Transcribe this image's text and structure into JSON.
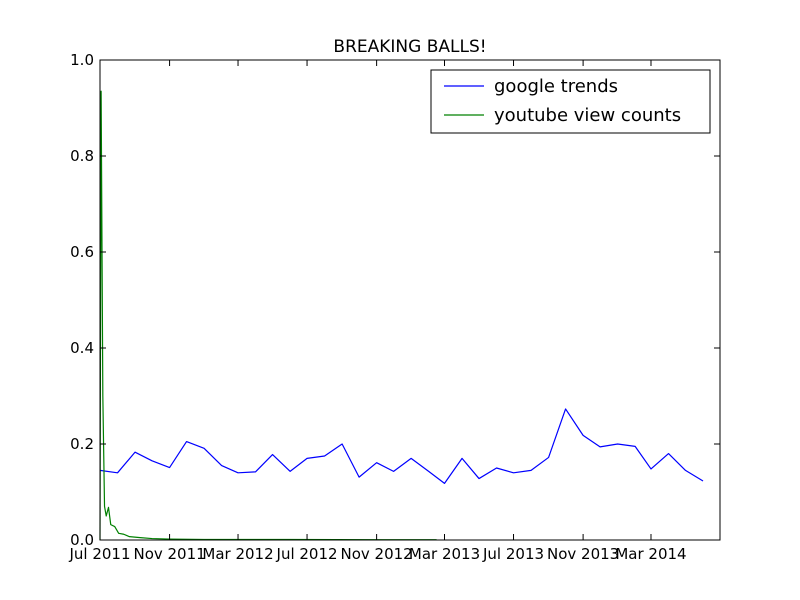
{
  "chart_data": {
    "type": "line",
    "title": "BREAKING BALLS!",
    "xlabel": "",
    "ylabel": "",
    "x_range": [
      "2011-07-01",
      "2014-07-01"
    ],
    "ylim": [
      0.0,
      1.0
    ],
    "x_ticks": [
      {
        "date": "2011-07-01",
        "label": "Jul 2011"
      },
      {
        "date": "2011-11-01",
        "label": "Nov 2011"
      },
      {
        "date": "2012-03-01",
        "label": "Mar 2012"
      },
      {
        "date": "2012-07-01",
        "label": "Jul 2012"
      },
      {
        "date": "2012-11-01",
        "label": "Nov 2012"
      },
      {
        "date": "2013-03-01",
        "label": "Mar 2013"
      },
      {
        "date": "2013-07-01",
        "label": "Jul 2013"
      },
      {
        "date": "2013-11-01",
        "label": "Nov 2013"
      },
      {
        "date": "2014-03-01",
        "label": "Mar 2014"
      }
    ],
    "y_ticks": [
      {
        "value": 0.0,
        "label": "0.0"
      },
      {
        "value": 0.2,
        "label": "0.2"
      },
      {
        "value": 0.4,
        "label": "0.4"
      },
      {
        "value": 0.6,
        "label": "0.6"
      },
      {
        "value": 0.8,
        "label": "0.8"
      },
      {
        "value": 1.0,
        "label": "1.0"
      }
    ],
    "grid": false,
    "legend_position": "top-right",
    "series": [
      {
        "name": "google trends",
        "color": "#0000ff",
        "points": [
          {
            "x": "2011-07-01",
            "y": 0.145
          },
          {
            "x": "2011-08-01",
            "y": 0.14
          },
          {
            "x": "2011-09-01",
            "y": 0.183
          },
          {
            "x": "2011-10-01",
            "y": 0.165
          },
          {
            "x": "2011-11-01",
            "y": 0.151
          },
          {
            "x": "2011-12-01",
            "y": 0.205
          },
          {
            "x": "2012-01-01",
            "y": 0.191
          },
          {
            "x": "2012-02-01",
            "y": 0.155
          },
          {
            "x": "2012-03-01",
            "y": 0.14
          },
          {
            "x": "2012-04-01",
            "y": 0.142
          },
          {
            "x": "2012-05-01",
            "y": 0.178
          },
          {
            "x": "2012-06-01",
            "y": 0.143
          },
          {
            "x": "2012-07-01",
            "y": 0.17
          },
          {
            "x": "2012-08-01",
            "y": 0.175
          },
          {
            "x": "2012-09-01",
            "y": 0.2
          },
          {
            "x": "2012-10-01",
            "y": 0.131
          },
          {
            "x": "2012-11-01",
            "y": 0.161
          },
          {
            "x": "2012-12-01",
            "y": 0.143
          },
          {
            "x": "2013-01-01",
            "y": 0.17
          },
          {
            "x": "2013-02-01",
            "y": 0.143
          },
          {
            "x": "2013-03-01",
            "y": 0.118
          },
          {
            "x": "2013-04-01",
            "y": 0.17
          },
          {
            "x": "2013-05-01",
            "y": 0.128
          },
          {
            "x": "2013-06-01",
            "y": 0.15
          },
          {
            "x": "2013-07-01",
            "y": 0.14
          },
          {
            "x": "2013-08-01",
            "y": 0.145
          },
          {
            "x": "2013-09-01",
            "y": 0.172
          },
          {
            "x": "2013-10-01",
            "y": 0.273
          },
          {
            "x": "2013-11-01",
            "y": 0.218
          },
          {
            "x": "2013-12-01",
            "y": 0.194
          },
          {
            "x": "2014-01-01",
            "y": 0.2
          },
          {
            "x": "2014-02-01",
            "y": 0.195
          },
          {
            "x": "2014-03-01",
            "y": 0.148
          },
          {
            "x": "2014-04-01",
            "y": 0.18
          },
          {
            "x": "2014-05-01",
            "y": 0.145
          },
          {
            "x": "2014-06-01",
            "y": 0.123
          }
        ]
      },
      {
        "name": "youtube view counts",
        "color": "#008000",
        "points": [
          {
            "x": "2011-07-01",
            "y": 0.0
          },
          {
            "x": "2011-07-03",
            "y": 0.935
          },
          {
            "x": "2011-07-06",
            "y": 0.3
          },
          {
            "x": "2011-07-09",
            "y": 0.07
          },
          {
            "x": "2011-07-12",
            "y": 0.05
          },
          {
            "x": "2011-07-16",
            "y": 0.068
          },
          {
            "x": "2011-07-20",
            "y": 0.032
          },
          {
            "x": "2011-07-27",
            "y": 0.028
          },
          {
            "x": "2011-08-03",
            "y": 0.014
          },
          {
            "x": "2011-08-12",
            "y": 0.012
          },
          {
            "x": "2011-08-22",
            "y": 0.007
          },
          {
            "x": "2011-09-10",
            "y": 0.005
          },
          {
            "x": "2011-10-01",
            "y": 0.003
          },
          {
            "x": "2011-11-01",
            "y": 0.002
          },
          {
            "x": "2012-01-01",
            "y": 0.001
          },
          {
            "x": "2012-06-01",
            "y": 0.001
          },
          {
            "x": "2012-12-01",
            "y": 0.0005
          },
          {
            "x": "2013-02-15",
            "y": 0.0005
          }
        ]
      }
    ]
  }
}
